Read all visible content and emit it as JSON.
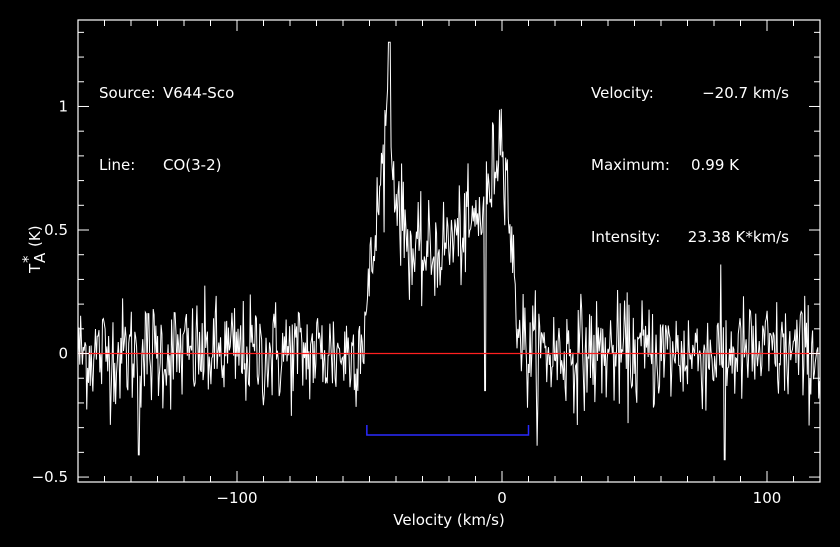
{
  "info": {
    "source_label": "Source:",
    "source_value": "V644-Sco",
    "line_label": "Line:",
    "line_value": "CO(3-2)",
    "velocity_label": "Velocity:",
    "velocity_value": "−20.7 km/s",
    "maximum_label": "Maximum:",
    "maximum_value": "0.99 K",
    "intensity_label": "Intensity:",
    "intensity_value": "23.38 K*km/s"
  },
  "chart_data": {
    "type": "line",
    "xlabel": "Velocity (km/s)",
    "ylabel_main": "T",
    "ylabel_sub": "A",
    "ylabel_sup": "*",
    "ylabel_unit": "(K)",
    "xlim": [
      -160,
      120
    ],
    "ylim": [
      -0.52,
      1.35
    ],
    "x_ticks": [
      -100,
      0,
      100
    ],
    "x_tick_labels": [
      "−100",
      "0",
      "100"
    ],
    "y_ticks": [
      -0.5,
      0,
      0.5,
      1
    ],
    "y_tick_labels": [
      "−0.5",
      "0",
      "0.5",
      "1"
    ],
    "zero_line": {
      "y": 0,
      "color": "#ff2020"
    },
    "window": {
      "x_start": -51,
      "x_end": 10,
      "y": -0.33,
      "color": "#2a2aff"
    },
    "spectrum": {
      "color": "#ffffff",
      "noise_rms": 0.11,
      "channel_width": 0.33,
      "profile": [
        {
          "x": -160,
          "y": 0
        },
        {
          "x": -56,
          "y": 0
        },
        {
          "x": -52,
          "y": 0.1
        },
        {
          "x": -48,
          "y": 0.45
        },
        {
          "x": -45,
          "y": 0.78
        },
        {
          "x": -43,
          "y": 1.0
        },
        {
          "x": -42,
          "y": 0.8
        },
        {
          "x": -38,
          "y": 0.55
        },
        {
          "x": -33,
          "y": 0.38
        },
        {
          "x": -27,
          "y": 0.4
        },
        {
          "x": -20,
          "y": 0.45
        },
        {
          "x": -12,
          "y": 0.5
        },
        {
          "x": -6,
          "y": 0.6
        },
        {
          "x": -2,
          "y": 0.82
        },
        {
          "x": 0,
          "y": 0.92
        },
        {
          "x": 2,
          "y": 0.7
        },
        {
          "x": 4,
          "y": 0.35
        },
        {
          "x": 6,
          "y": 0.15
        },
        {
          "x": 9,
          "y": 0
        },
        {
          "x": 120,
          "y": 0
        }
      ]
    }
  }
}
